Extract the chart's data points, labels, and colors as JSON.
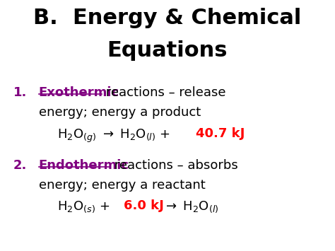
{
  "title_line1": "B.  Energy & Chemical",
  "title_line2": "Equations",
  "title_fontsize": 22,
  "title_color": "#000000",
  "background_color": "#ffffff",
  "item1_keyword": "Exothermic",
  "item1_keyword_color": "#800080",
  "item1_rest1": " reactions – release",
  "item1_rest2": "energy; energy a product",
  "item1_eq_energy": "40.7 kJ",
  "item1_eq_energy_color": "#ff0000",
  "item2_keyword": "Endothermic",
  "item2_keyword_color": "#800080",
  "item2_rest1": " reactions – absorbs",
  "item2_rest2": "energy; energy a reactant",
  "item2_eq_energy": "6.0 kJ",
  "item2_eq_energy_color": "#ff0000",
  "text_fontsize": 13,
  "eq_fontsize": 13,
  "underline_color": "#800080",
  "number_color": "#800080"
}
